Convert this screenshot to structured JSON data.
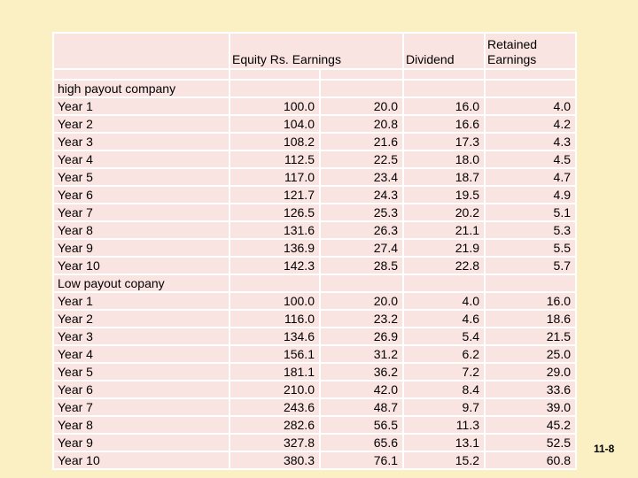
{
  "page": {
    "background_color": "#fbefc4",
    "slide_number": "11-8"
  },
  "table": {
    "cell_bg_color": "#fae4e1",
    "grid_color": "#ffffff",
    "text_color": "#000000",
    "headers": {
      "row_label": "",
      "equity_earnings": "Equity Rs. Earnings",
      "dividend": "Dividend",
      "retained_earnings": "Retained Earnings"
    },
    "columns": [
      "label",
      "equity",
      "earnings",
      "dividend",
      "retained"
    ],
    "sections": [
      {
        "label": "high payout company",
        "rows": [
          {
            "label": "Year 1",
            "equity": "100.0",
            "earnings": "20.0",
            "dividend": "16.0",
            "retained": "4.0"
          },
          {
            "label": "Year 2",
            "equity": "104.0",
            "earnings": "20.8",
            "dividend": "16.6",
            "retained": "4.2"
          },
          {
            "label": "Year 3",
            "equity": "108.2",
            "earnings": "21.6",
            "dividend": "17.3",
            "retained": "4.3"
          },
          {
            "label": "Year 4",
            "equity": "112.5",
            "earnings": "22.5",
            "dividend": "18.0",
            "retained": "4.5"
          },
          {
            "label": "Year 5",
            "equity": "117.0",
            "earnings": "23.4",
            "dividend": "18.7",
            "retained": "4.7"
          },
          {
            "label": "Year 6",
            "equity": "121.7",
            "earnings": "24.3",
            "dividend": "19.5",
            "retained": "4.9"
          },
          {
            "label": "Year 7",
            "equity": "126.5",
            "earnings": "25.3",
            "dividend": "20.2",
            "retained": "5.1"
          },
          {
            "label": "Year 8",
            "equity": "131.6",
            "earnings": "26.3",
            "dividend": "21.1",
            "retained": "5.3"
          },
          {
            "label": "Year 9",
            "equity": "136.9",
            "earnings": "27.4",
            "dividend": "21.9",
            "retained": "5.5"
          },
          {
            "label": "Year 10",
            "equity": "142.3",
            "earnings": "28.5",
            "dividend": "22.8",
            "retained": "5.7"
          }
        ]
      },
      {
        "label": "Low payout copany",
        "rows": [
          {
            "label": "Year 1",
            "equity": "100.0",
            "earnings": "20.0",
            "dividend": "4.0",
            "retained": "16.0"
          },
          {
            "label": "Year 2",
            "equity": "116.0",
            "earnings": "23.2",
            "dividend": "4.6",
            "retained": "18.6"
          },
          {
            "label": "Year 3",
            "equity": "134.6",
            "earnings": "26.9",
            "dividend": "5.4",
            "retained": "21.5"
          },
          {
            "label": "Year 4",
            "equity": "156.1",
            "earnings": "31.2",
            "dividend": "6.2",
            "retained": "25.0"
          },
          {
            "label": "Year 5",
            "equity": "181.1",
            "earnings": "36.2",
            "dividend": "7.2",
            "retained": "29.0"
          },
          {
            "label": "Year 6",
            "equity": "210.0",
            "earnings": "42.0",
            "dividend": "8.4",
            "retained": "33.6"
          },
          {
            "label": "Year 7",
            "equity": "243.6",
            "earnings": "48.7",
            "dividend": "9.7",
            "retained": "39.0"
          },
          {
            "label": "Year 8",
            "equity": "282.6",
            "earnings": "56.5",
            "dividend": "11.3",
            "retained": "45.2"
          },
          {
            "label": "Year 9",
            "equity": "327.8",
            "earnings": "65.6",
            "dividend": "13.1",
            "retained": "52.5"
          },
          {
            "label": "Year 10",
            "equity": "380.3",
            "earnings": "76.1",
            "dividend": "15.2",
            "retained": "60.8"
          }
        ]
      }
    ]
  }
}
